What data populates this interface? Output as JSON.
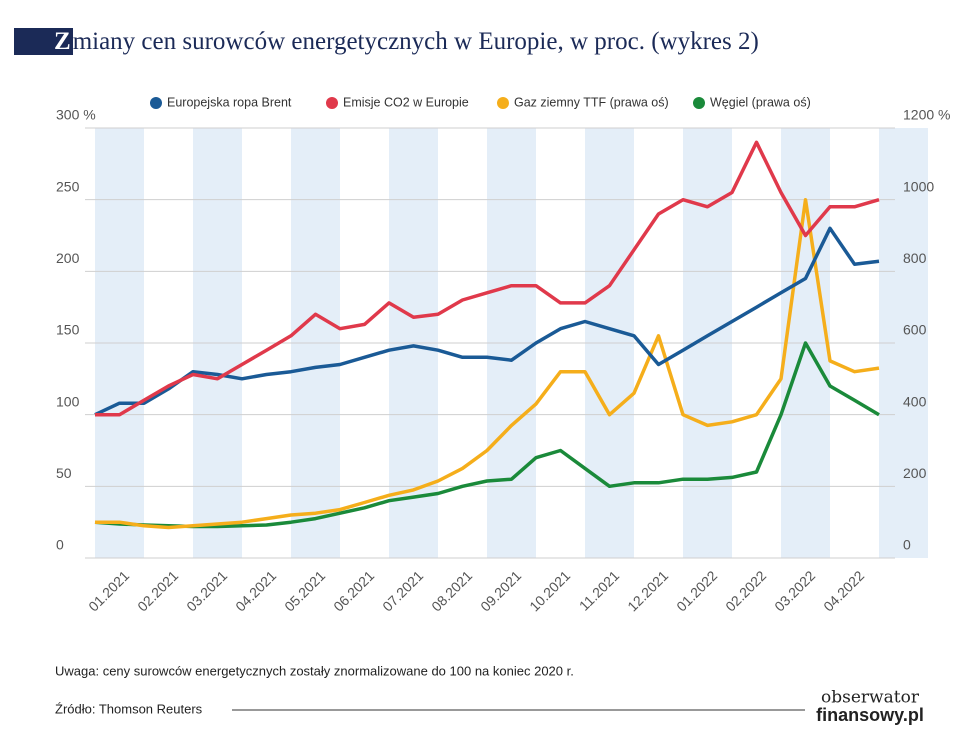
{
  "chart_data": {
    "type": "line",
    "title": "Zmiany cen surowców energetycznych w Europie, w proc. (wykres 2)",
    "categories": [
      null,
      "01.2021",
      null,
      "02.2021",
      null,
      "03.2021",
      null,
      "04.2021",
      null,
      "05.2021",
      null,
      "06.2021",
      null,
      "07.2021",
      null,
      "08.2021",
      null,
      "09.2021",
      null,
      "10.2021",
      null,
      "11.2021",
      null,
      "12.2021",
      null,
      "01.2022",
      null,
      "02.2022",
      null,
      "03.2022",
      null,
      "04.2022",
      null
    ],
    "series": [
      {
        "name": "Europejska ropa Brent",
        "color": "#1a5a96",
        "values": [
          100,
          108,
          108,
          118,
          130,
          128,
          125,
          128,
          130,
          133,
          135,
          140,
          145,
          148,
          145,
          140,
          140,
          138,
          150,
          160,
          165,
          160,
          155,
          135,
          145,
          155,
          165,
          175,
          185,
          195,
          230,
          205,
          207
        ]
      },
      {
        "name": "Emisje CO2 w Europie",
        "color": "#e0394b",
        "values": [
          100,
          100,
          110,
          120,
          128,
          125,
          135,
          145,
          155,
          170,
          160,
          163,
          178,
          168,
          170,
          180,
          185,
          190,
          190,
          178,
          178,
          190,
          215,
          240,
          250,
          245,
          255,
          290,
          255,
          225,
          245,
          245,
          250
        ]
      },
      {
        "name": "Gaz ziemny TTF (prawa oś)",
        "color": "#f5ae1b",
        "axis": "y2",
        "values": [
          100,
          100,
          90,
          85,
          90,
          95,
          100,
          110,
          120,
          125,
          135,
          155,
          175,
          190,
          215,
          250,
          300,
          370,
          430,
          520,
          520,
          400,
          460,
          620,
          400,
          370,
          380,
          400,
          500,
          1000,
          550,
          520,
          530
        ]
      },
      {
        "name": "Węgiel (prawa oś)",
        "color": "#1a8a3a",
        "axis": "y2",
        "values": [
          100,
          95,
          92,
          90,
          88,
          88,
          90,
          92,
          100,
          110,
          125,
          140,
          160,
          170,
          180,
          200,
          215,
          220,
          280,
          300,
          250,
          200,
          210,
          210,
          220,
          220,
          225,
          240,
          400,
          600,
          480,
          440,
          400
        ]
      }
    ],
    "ylim": [
      0,
      300
    ],
    "yticks": [
      0,
      50,
      100,
      150,
      200,
      250,
      {
        "value": 300,
        "label": "300 %"
      }
    ],
    "y2lim": [
      0,
      1200
    ],
    "y2ticks": [
      0,
      200,
      400,
      600,
      800,
      1000,
      {
        "value": 1200,
        "label": "1200 %"
      }
    ],
    "grid": true,
    "note": "Uwaga: ceny surowców energetycznych zostały znormalizowane do 100 na koniec 2020 r.",
    "source": "Źródło: Thomson Reuters",
    "logo": [
      "obserwator",
      "finansowy.pl"
    ]
  }
}
